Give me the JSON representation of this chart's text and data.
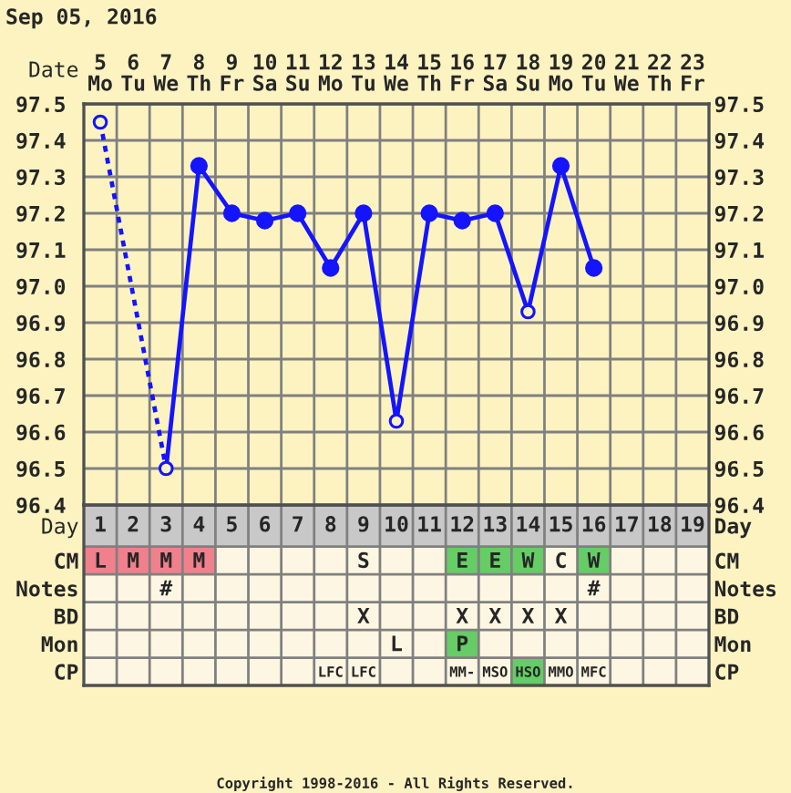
{
  "chart_data": [
    {
      "type": "line",
      "title": "Sep 05, 2016",
      "xlabel": "Day",
      "x2label": "Date",
      "xlim": [
        0.5,
        19.5
      ],
      "xticks": [
        1,
        2,
        3,
        4,
        5,
        6,
        7,
        8,
        9,
        10,
        11,
        12,
        13,
        14,
        15,
        16,
        17,
        18,
        19
      ],
      "x2lim": [
        4.5,
        23.5
      ],
      "x2ticks": [
        {
          "value": 5,
          "label": "5\nMo"
        },
        {
          "value": 6,
          "label": "6\nTu"
        },
        {
          "value": 7,
          "label": "7\nWe"
        },
        {
          "value": 8,
          "label": "8\nTh"
        },
        {
          "value": 9,
          "label": "9\nFr"
        },
        {
          "value": 10,
          "label": "10\nSa"
        },
        {
          "value": 11,
          "label": "11\nSu"
        },
        {
          "value": 12,
          "label": "12\nMo"
        },
        {
          "value": 13,
          "label": "13\nTu"
        },
        {
          "value": 14,
          "label": "14\nWe"
        },
        {
          "value": 15,
          "label": "15\nTh"
        },
        {
          "value": 16,
          "label": "16\nFr"
        },
        {
          "value": 17,
          "label": "17\nSa"
        },
        {
          "value": 18,
          "label": "18\nSu"
        },
        {
          "value": 19,
          "label": "19\nMo"
        },
        {
          "value": 20,
          "label": "20\nTu"
        },
        {
          "value": 21,
          "label": "21\nWe"
        },
        {
          "value": 22,
          "label": "22\nTh"
        },
        {
          "value": 23,
          "label": "23\nFr"
        }
      ],
      "ylim": [
        96.4,
        97.5
      ],
      "yticks": [
        96.4,
        96.5,
        96.6,
        96.7,
        96.8,
        96.9,
        {
          "value": 97,
          "label": "97.0"
        },
        97.1,
        97.2,
        97.3,
        97.4,
        97.5
      ],
      "y2lim": [
        96.4,
        97.5
      ],
      "y2ticks": [
        96.4,
        96.5,
        96.6,
        96.7,
        96.8,
        96.9,
        {
          "value": 97,
          "label": "97.0"
        },
        97.1,
        97.2,
        97.3,
        97.4,
        97.5
      ],
      "grid": true,
      "series": [
        {
          "type": "line",
          "x": [
            1,
            3
          ],
          "values": [
            97.45,
            96.5
          ],
          "color": "#1414ff",
          "line_style": "dotted",
          "marker": "none"
        },
        {
          "type": "line",
          "x": [
            3,
            4,
            5,
            6,
            7,
            8,
            9,
            10,
            11,
            12,
            13,
            14,
            15,
            16
          ],
          "values": [
            96.5,
            97.33,
            97.2,
            97.18,
            97.2,
            97.05,
            97.2,
            96.63,
            97.2,
            97.18,
            97.2,
            96.93,
            97.33,
            97.05
          ],
          "color": "#1414ff",
          "line_style": "solid",
          "marker": "none"
        },
        {
          "type": "scatter",
          "x": [
            1,
            3,
            4,
            5,
            6,
            7,
            8,
            9,
            10,
            11,
            12,
            13,
            14,
            15,
            16
          ],
          "values": [
            97.45,
            96.5,
            97.33,
            97.2,
            97.18,
            97.2,
            97.05,
            97.2,
            96.63,
            97.2,
            97.18,
            97.2,
            96.93,
            97.33,
            97.05
          ],
          "color": "#1414ff",
          "marker": "circle",
          "colors": [
            "#fdf3c1",
            "#fdf3c1",
            "#1414ff",
            "#1414ff",
            "#1414ff",
            "#1414ff",
            "#1414ff",
            "#1414ff",
            "#fdf3c1",
            "#1414ff",
            "#1414ff",
            "#1414ff",
            "#fdf3c1",
            "#1414ff",
            "#1414ff"
          ]
        }
      ],
      "annotations": [
        "Copyright 1998-2016 - All Rights Reserved."
      ]
    },
    {
      "type": "heatmap",
      "categories": [
        null,
        null,
        null,
        null,
        null,
        null,
        null,
        null,
        null,
        null,
        null,
        null,
        null,
        null,
        null,
        null,
        null,
        null,
        null
      ],
      "y_categories": [
        "CM",
        "Notes",
        "BD",
        "Mon",
        "CP"
      ],
      "y2_categories": [
        "CM",
        "Notes",
        "BD",
        "Mon",
        "CP"
      ],
      "cells": [
        [
          null,
          null,
          null,
          null,
          null,
          null,
          null,
          null,
          null,
          null,
          null,
          null,
          null,
          null,
          null,
          null,
          null,
          null,
          null
        ],
        [
          null,
          null,
          null,
          null,
          null,
          null,
          null,
          null,
          null,
          null,
          null,
          null,
          null,
          null,
          null,
          null,
          null,
          null,
          null
        ],
        [
          null,
          null,
          null,
          null,
          null,
          null,
          null,
          null,
          null,
          null,
          null,
          null,
          null,
          null,
          null,
          null,
          null,
          null,
          null
        ],
        [
          null,
          null,
          null,
          null,
          null,
          null,
          null,
          null,
          null,
          null,
          null,
          null,
          null,
          null,
          null,
          null,
          null,
          null,
          null
        ],
        [
          null,
          null,
          null,
          null,
          null,
          null,
          null,
          null,
          null,
          null,
          null,
          null,
          null,
          null,
          null,
          null,
          null,
          null,
          null
        ]
      ],
      "cell_labels": [
        [
          "L",
          "M",
          "M",
          "M",
          null,
          null,
          null,
          null,
          "S",
          null,
          null,
          "E",
          "E",
          "W",
          "C",
          "W",
          null,
          null,
          null
        ],
        [
          null,
          null,
          "#",
          null,
          null,
          null,
          null,
          null,
          null,
          null,
          null,
          null,
          null,
          null,
          null,
          "#",
          null,
          null,
          null
        ],
        [
          null,
          null,
          null,
          null,
          null,
          null,
          null,
          null,
          "X",
          null,
          null,
          "X",
          "X",
          "X",
          "X",
          null,
          null,
          null,
          null
        ],
        [
          null,
          null,
          null,
          null,
          null,
          null,
          null,
          null,
          null,
          "L",
          null,
          "P",
          null,
          null,
          null,
          null,
          null,
          null,
          null
        ],
        [
          null,
          null,
          null,
          null,
          null,
          null,
          null,
          "LFC",
          "LFC",
          null,
          null,
          "MM-",
          "MSO",
          "HSO",
          "MMO",
          "MFC",
          null,
          null,
          null
        ]
      ],
      "colors": [
        [
          "#f0808c",
          "#f0808c",
          "#f0808c",
          "#f0808c",
          null,
          null,
          null,
          null,
          null,
          null,
          null,
          "#66cc66",
          "#66cc66",
          "#66cc66",
          null,
          "#66cc66",
          null,
          null,
          null
        ],
        [
          null,
          null,
          null,
          null,
          null,
          null,
          null,
          null,
          null,
          null,
          null,
          null,
          null,
          null,
          null,
          null,
          null,
          null,
          null
        ],
        [
          null,
          null,
          null,
          null,
          null,
          null,
          null,
          null,
          null,
          null,
          null,
          null,
          null,
          null,
          null,
          null,
          null,
          null,
          null
        ],
        [
          null,
          null,
          null,
          null,
          null,
          null,
          null,
          null,
          null,
          null,
          null,
          "#66cc66",
          null,
          null,
          null,
          null,
          null,
          null,
          null
        ],
        [
          null,
          null,
          null,
          null,
          null,
          null,
          null,
          null,
          null,
          null,
          null,
          null,
          null,
          "#66cc66",
          null,
          null,
          null,
          null,
          null
        ]
      ]
    }
  ]
}
